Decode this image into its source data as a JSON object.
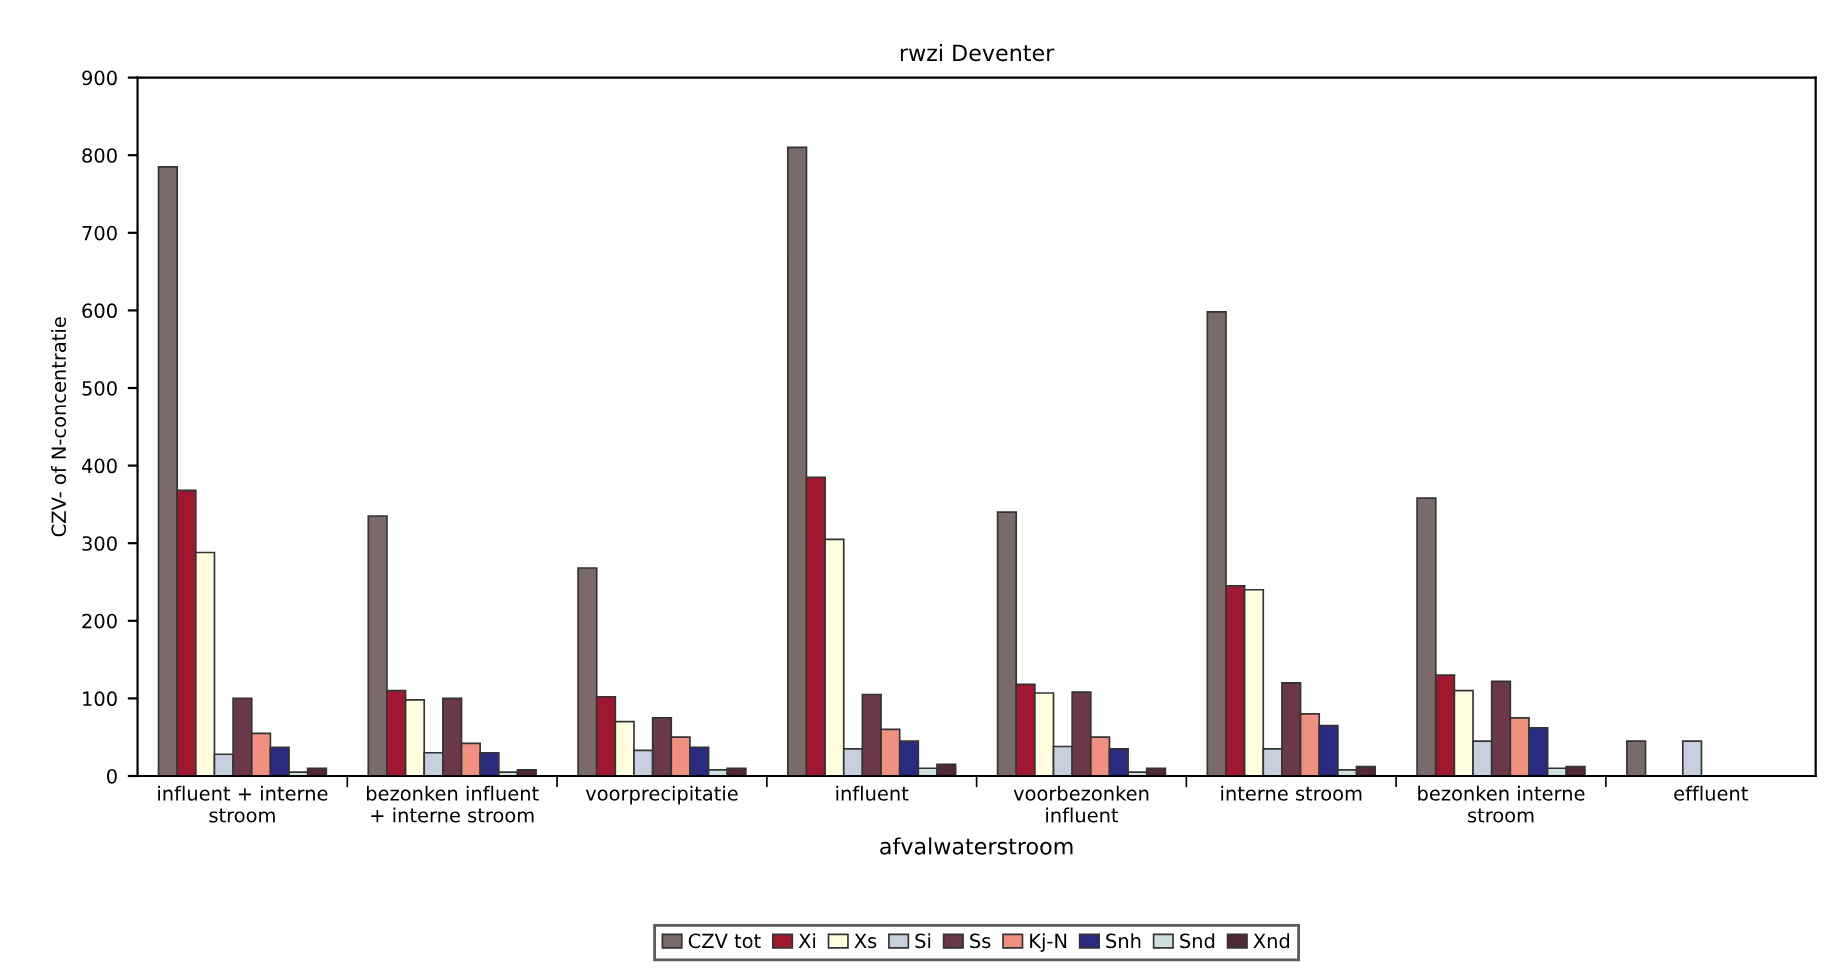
{
  "chart_data": {
    "type": "bar",
    "title": "rwzi Deventer",
    "xlabel": "afvalwaterstroom",
    "ylabel": "CZV- of N-concentratie",
    "categories": [
      "influent + interne\nstroom",
      "bezonken influent\n+ interne stroom",
      "voorprecipitatie",
      "influent",
      "voorbezonken\ninfluent",
      "interne stroom",
      "bezonken interne\nstroom",
      "effluent"
    ],
    "series": [
      {
        "name": "CZV tot",
        "color": "#7a6a6a",
        "values": [
          785,
          335,
          268,
          810,
          340,
          598,
          358,
          45
        ]
      },
      {
        "name": "Xi",
        "color": "#a01830",
        "values": [
          368,
          110,
          102,
          385,
          118,
          245,
          130,
          null
        ]
      },
      {
        "name": "Xs",
        "color": "#ffffe0",
        "values": [
          288,
          98,
          70,
          305,
          107,
          240,
          110,
          null
        ]
      },
      {
        "name": "Si",
        "color": "#c8d0e0",
        "values": [
          28,
          30,
          33,
          35,
          38,
          35,
          45,
          45
        ]
      },
      {
        "name": "Ss",
        "color": "#6a3848",
        "values": [
          100,
          100,
          75,
          105,
          108,
          120,
          122,
          null
        ]
      },
      {
        "name": "Kj-N",
        "color": "#f09080",
        "values": [
          55,
          42,
          50,
          60,
          50,
          80,
          75,
          null
        ]
      },
      {
        "name": "Snh",
        "color": "#2a2a80",
        "values": [
          37,
          30,
          37,
          45,
          35,
          65,
          62,
          null
        ]
      },
      {
        "name": "Snd",
        "color": "#d0e0e0",
        "values": [
          5,
          5,
          8,
          10,
          5,
          8,
          10,
          null
        ]
      },
      {
        "name": "Xnd",
        "color": "#502838",
        "values": [
          10,
          8,
          10,
          15,
          10,
          12,
          12,
          null
        ]
      }
    ],
    "ylim": [
      0,
      900
    ],
    "yticks": [
      0,
      100,
      200,
      300,
      400,
      500,
      600,
      700,
      800,
      900
    ],
    "grid": false,
    "legend": "bottom"
  }
}
